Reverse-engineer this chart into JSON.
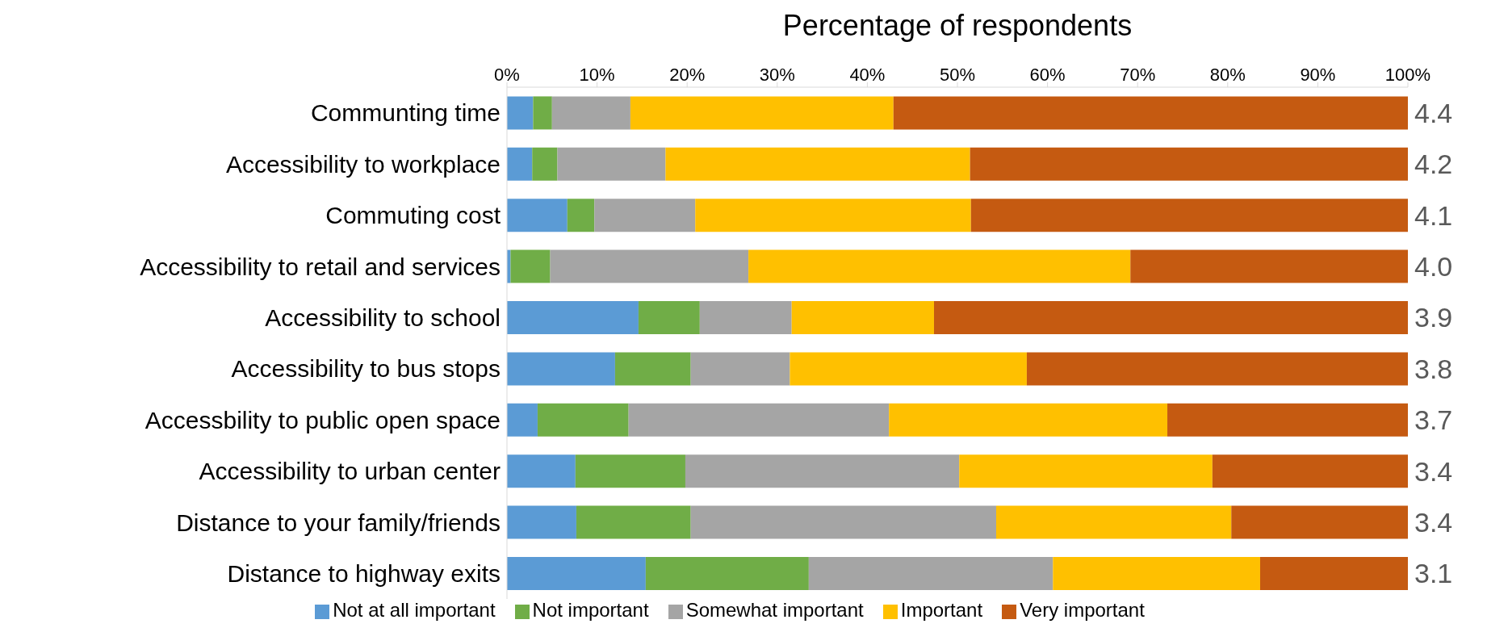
{
  "chart_data": {
    "type": "bar",
    "orientation": "horizontal",
    "stacked": true,
    "xlabel": "Percentage of respondents",
    "categories": [
      "Communting time",
      "Accessibility to workplace",
      "Commuting cost",
      "Accessibility to retail and services",
      "Accessibility to school",
      "Accessibility to bus stops",
      "Accessbility to public open space",
      "Accessibility to urban center",
      "Distance to your family/friends",
      "Distance to highway exits"
    ],
    "series": [
      {
        "name": "Not at all important",
        "color": "#5b9bd5",
        "values": [
          2.9,
          2.8,
          6.7,
          0.4,
          14.6,
          12.0,
          3.4,
          7.6,
          7.7,
          15.4
        ]
      },
      {
        "name": "Not important",
        "color": "#70ad47",
        "values": [
          2.1,
          2.8,
          3.0,
          4.4,
          6.8,
          8.4,
          10.1,
          12.2,
          12.7,
          18.1
        ]
      },
      {
        "name": "Somewhat important",
        "color": "#a5a5a5",
        "values": [
          8.7,
          12.0,
          11.2,
          22.0,
          10.2,
          11.0,
          28.9,
          30.4,
          33.9,
          27.1
        ]
      },
      {
        "name": "Important",
        "color": "#ffc000",
        "values": [
          29.2,
          33.8,
          30.6,
          42.4,
          15.8,
          26.3,
          30.9,
          28.1,
          26.1,
          23.0
        ]
      },
      {
        "name": "Very important",
        "color": "#c55a11",
        "values": [
          57.1,
          48.6,
          48.5,
          30.8,
          52.6,
          42.3,
          26.7,
          21.7,
          19.6,
          16.5
        ]
      }
    ],
    "xlim": [
      0,
      100
    ],
    "xticks": [
      {
        "value": 0,
        "label": "0%"
      },
      {
        "value": 10,
        "label": "10%"
      },
      {
        "value": 20,
        "label": "20%"
      },
      {
        "value": 30,
        "label": "30%"
      },
      {
        "value": 40,
        "label": "40%"
      },
      {
        "value": 50,
        "label": "50%"
      },
      {
        "value": 60,
        "label": "60%"
      },
      {
        "value": 70,
        "label": "70%"
      },
      {
        "value": 80,
        "label": "80%"
      },
      {
        "value": 90,
        "label": "90%"
      },
      {
        "value": 100,
        "label": "100%"
      }
    ],
    "annotations": [
      "4.4",
      "4.2",
      "4.1",
      "4.0",
      "3.9",
      "3.8",
      "3.7",
      "3.4",
      "3.4",
      "3.1"
    ],
    "grid": false,
    "legend": "bottom"
  }
}
